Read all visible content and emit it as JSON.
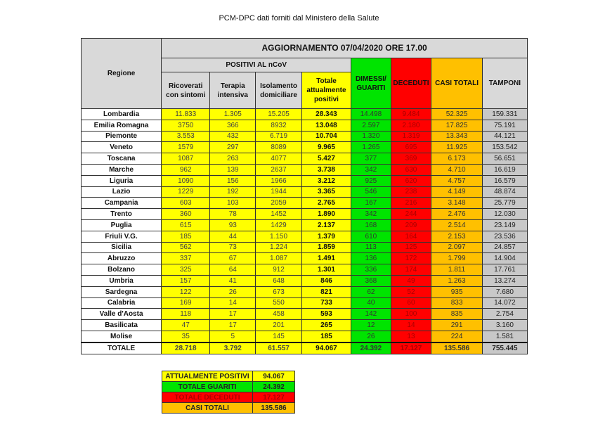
{
  "title": "PCM-DPC dati forniti dal Ministero della Salute",
  "header": {
    "regione": "Regione",
    "aggiornamento": "AGGIORNAMENTO 07/04/2020 ORE 17.00",
    "positivi": "POSITIVI AL nCoV",
    "cols": [
      "Ricoverati con sintomi",
      "Terapia intensiva",
      "Isolamento domiciliare",
      "Totale attualmente positivi",
      "DIMESSI/ GUARITI",
      "DECEDUTI",
      "CASI TOTALI",
      "TAMPONI"
    ]
  },
  "rows": [
    [
      "Lombardia",
      "11.833",
      "1.305",
      "15.205",
      "28.343",
      "14.498",
      "9.484",
      "52.325",
      "159.331"
    ],
    [
      "Emilia Romagna",
      "3750",
      "366",
      "8932",
      "13.048",
      "2.597",
      "2.180",
      "17.825",
      "75.191"
    ],
    [
      "Piemonte",
      "3.553",
      "432",
      "6.719",
      "10.704",
      "1.320",
      "1.319",
      "13.343",
      "44.121"
    ],
    [
      "Veneto",
      "1579",
      "297",
      "8089",
      "9.965",
      "1.265",
      "695",
      "11.925",
      "153.542"
    ],
    [
      "Toscana",
      "1087",
      "263",
      "4077",
      "5.427",
      "377",
      "369",
      "6.173",
      "56.651"
    ],
    [
      "Marche",
      "962",
      "139",
      "2637",
      "3.738",
      "342",
      "630",
      "4.710",
      "16.619"
    ],
    [
      "Liguria",
      "1090",
      "156",
      "1966",
      "3.212",
      "925",
      "620",
      "4.757",
      "16.579"
    ],
    [
      "Lazio",
      "1229",
      "192",
      "1944",
      "3.365",
      "546",
      "238",
      "4.149",
      "48.874"
    ],
    [
      "Campania",
      "603",
      "103",
      "2059",
      "2.765",
      "167",
      "216",
      "3.148",
      "25.779"
    ],
    [
      "Trento",
      "360",
      "78",
      "1452",
      "1.890",
      "342",
      "244",
      "2.476",
      "12.030"
    ],
    [
      "Puglia",
      "615",
      "93",
      "1429",
      "2.137",
      "168",
      "209",
      "2.514",
      "23.149"
    ],
    [
      "Friuli V.G.",
      "185",
      "44",
      "1.150",
      "1.379",
      "610",
      "164",
      "2.153",
      "23.536"
    ],
    [
      "Sicilia",
      "562",
      "73",
      "1.224",
      "1.859",
      "113",
      "125",
      "2.097",
      "24.857"
    ],
    [
      "Abruzzo",
      "337",
      "67",
      "1.087",
      "1.491",
      "136",
      "172",
      "1.799",
      "14.904"
    ],
    [
      "Bolzano",
      "325",
      "64",
      "912",
      "1.301",
      "336",
      "174",
      "1.811",
      "17.761"
    ],
    [
      "Umbria",
      "157",
      "41",
      "648",
      "846",
      "368",
      "49",
      "1.263",
      "13.274"
    ],
    [
      "Sardegna",
      "122",
      "26",
      "673",
      "821",
      "62",
      "52",
      "935",
      "7.680"
    ],
    [
      "Calabria",
      "169",
      "14",
      "550",
      "733",
      "40",
      "60",
      "833",
      "14.072"
    ],
    [
      "Valle d'Aosta",
      "118",
      "17",
      "458",
      "593",
      "142",
      "100",
      "835",
      "2.754"
    ],
    [
      "Basilicata",
      "47",
      "17",
      "201",
      "265",
      "12",
      "14",
      "291",
      "3.160"
    ],
    [
      "Molise",
      "35",
      "5",
      "145",
      "185",
      "26",
      "13",
      "224",
      "1.581"
    ]
  ],
  "totale": [
    "TOTALE",
    "28.718",
    "3.792",
    "61.557",
    "94.067",
    "24.392",
    "17.127",
    "135.586",
    "755.445"
  ],
  "summary": [
    {
      "label": "ATTUALMENTE POSITIVI",
      "value": "94.067",
      "color": "#ffff00"
    },
    {
      "label": "TOTALE GUARITI",
      "value": "24.392",
      "color": "#00e400"
    },
    {
      "label": "TOTALE DECEDUTI",
      "value": "17.127",
      "color": "#ff0000"
    },
    {
      "label": "CASI TOTALI",
      "value": "135.586",
      "color": "#ffc000"
    }
  ]
}
